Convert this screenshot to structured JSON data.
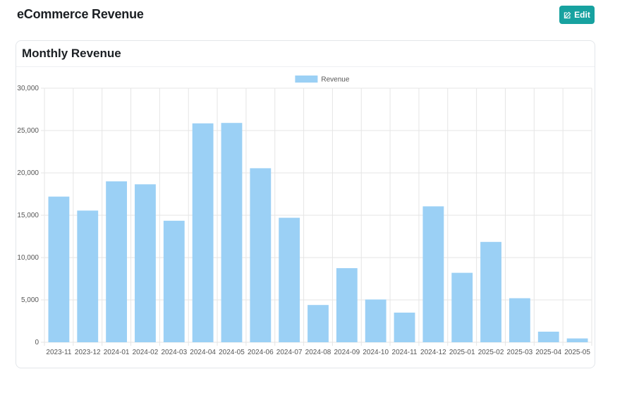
{
  "header": {
    "title": "eCommerce Revenue",
    "edit_label": "Edit"
  },
  "card": {
    "title": "Monthly Revenue"
  },
  "colors": {
    "accent": "#17a2a0",
    "bar_fill": "#9bd0f5",
    "grid": "#e5e5e5"
  },
  "icons": {
    "edit": "edit-icon"
  },
  "chart_data": {
    "type": "bar",
    "categories": [
      "2023-11",
      "2023-12",
      "2024-01",
      "2024-02",
      "2024-03",
      "2024-04",
      "2024-05",
      "2024-06",
      "2024-07",
      "2024-08",
      "2024-09",
      "2024-10",
      "2024-11",
      "2024-12",
      "2025-01",
      "2025-02",
      "2025-03",
      "2025-04",
      "2025-05"
    ],
    "series": [
      {
        "name": "Revenue",
        "values": [
          17200,
          15550,
          19000,
          18650,
          14350,
          25850,
          25900,
          20550,
          14700,
          4400,
          8750,
          5050,
          3500,
          16050,
          8200,
          11850,
          5200,
          1250,
          450
        ]
      }
    ],
    "ylim": [
      0,
      30000
    ],
    "yticks": [
      0,
      5000,
      10000,
      15000,
      20000,
      25000,
      30000
    ],
    "ytick_labels": [
      "0",
      "5,000",
      "10,000",
      "15,000",
      "20,000",
      "25,000",
      "30,000"
    ],
    "grid": true,
    "legend": "top-center",
    "xlabel": "",
    "ylabel": ""
  }
}
